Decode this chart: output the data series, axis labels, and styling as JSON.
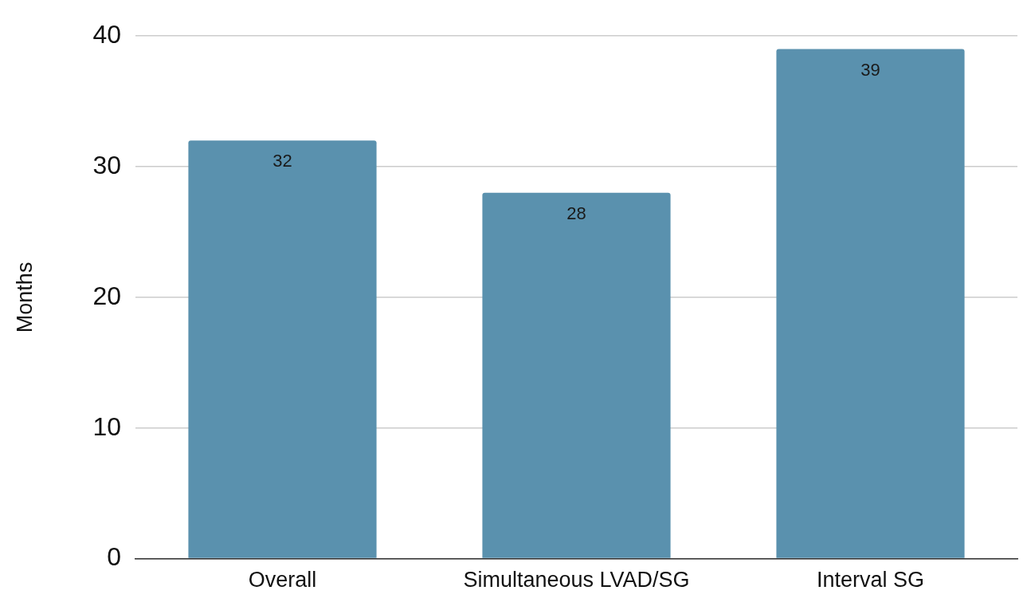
{
  "chart_data": {
    "type": "bar",
    "ylabel": "Months",
    "categories": [
      "Overall",
      "Simultaneous LVAD/SG",
      "Interval SG"
    ],
    "values": [
      32,
      28,
      39
    ],
    "color": "#5a91ae",
    "ylim": [
      0,
      40
    ],
    "yticks": [
      0,
      10,
      20,
      30,
      40
    ],
    "grid": "y",
    "legend": false,
    "data_labels": true
  }
}
